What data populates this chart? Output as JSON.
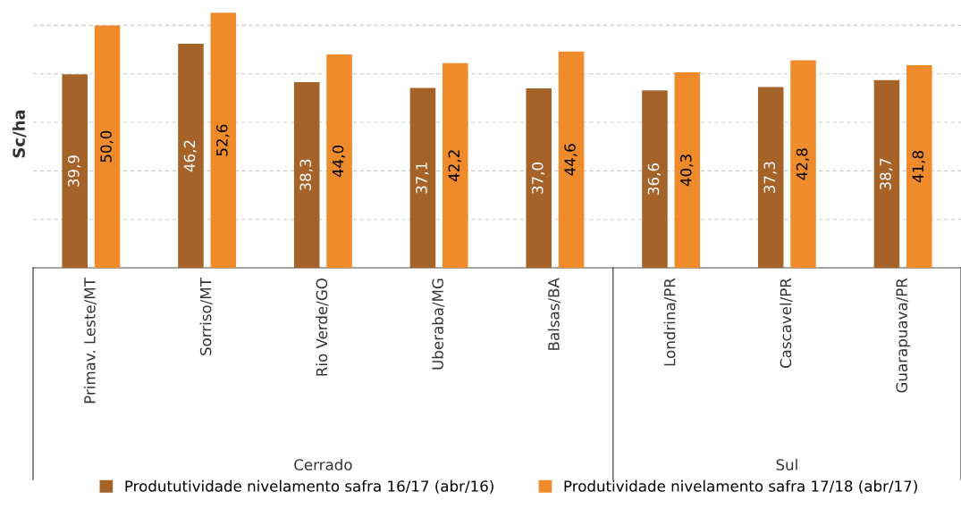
{
  "chart_data": {
    "type": "bar",
    "ylabel": "Sc/ha",
    "categories": [
      "Primav. Leste/MT",
      "Sorriso/MT",
      "Rio Verde/GO",
      "Uberaba/MG",
      "Balsas/BA",
      "Londrina/PR",
      "Cascavel/PR",
      "Guarapuava/PR"
    ],
    "series": [
      {
        "name": "Prodututividade nivelamento safra 16/17 (abr/16)",
        "color": "#a5632a",
        "values": [
          39.9,
          46.2,
          38.3,
          37.1,
          37.0,
          36.6,
          37.3,
          38.7
        ],
        "value_labels": [
          "39,9",
          "46,2",
          "38,3",
          "37,1",
          "37,0",
          "36,6",
          "37,3",
          "38,7"
        ]
      },
      {
        "name": "Produtividade nivelamento safra 17/18 (abr/17)",
        "color": "#f08b2c",
        "values": [
          50.0,
          52.6,
          44.0,
          42.2,
          44.6,
          40.3,
          42.8,
          41.8
        ],
        "value_labels": [
          "50,0",
          "52,6",
          "44,0",
          "42,2",
          "44,6",
          "40,3",
          "42,8",
          "41,8"
        ]
      }
    ],
    "annotations": [
      "Cerrado",
      "Sul"
    ],
    "tick_labels": "x",
    "grid": "y",
    "legend": "bottom"
  }
}
